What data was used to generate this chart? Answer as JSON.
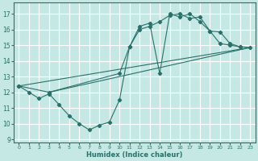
{
  "xlabel": "Humidex (Indice chaleur)",
  "xlim": [
    -0.5,
    23.5
  ],
  "ylim": [
    8.8,
    17.7
  ],
  "yticks": [
    9,
    10,
    11,
    12,
    13,
    14,
    15,
    16,
    17
  ],
  "xticks": [
    0,
    1,
    2,
    3,
    4,
    5,
    6,
    7,
    8,
    9,
    10,
    11,
    12,
    13,
    14,
    15,
    16,
    17,
    18,
    19,
    20,
    21,
    22,
    23
  ],
  "bg_color": "#c5e8e4",
  "grid_color": "#ffffff",
  "lc": "#2a706a",
  "line1_x": [
    0,
    1,
    2,
    3,
    4,
    5,
    6,
    7,
    8,
    9,
    10,
    11,
    12,
    13,
    14,
    15,
    16,
    17,
    18,
    19,
    20,
    21,
    22
  ],
  "line1_y": [
    12.4,
    12.0,
    11.6,
    11.9,
    11.2,
    10.5,
    10.0,
    9.6,
    9.9,
    10.1,
    11.5,
    14.9,
    16.2,
    16.4,
    13.2,
    17.0,
    16.8,
    17.0,
    16.5,
    15.9,
    15.1,
    15.0,
    14.9
  ],
  "line2_x": [
    0,
    23
  ],
  "line2_y": [
    12.4,
    14.85
  ],
  "line3_x": [
    3,
    23
  ],
  "line3_y": [
    12.0,
    14.85
  ],
  "line4_x": [
    0,
    3,
    10,
    11,
    12,
    13,
    14,
    15,
    16,
    17,
    18,
    19,
    20,
    21,
    22,
    23
  ],
  "line4_y": [
    12.4,
    12.0,
    13.2,
    14.9,
    16.0,
    16.2,
    16.5,
    16.9,
    17.0,
    16.7,
    16.8,
    15.9,
    15.85,
    15.1,
    14.9,
    14.85
  ]
}
